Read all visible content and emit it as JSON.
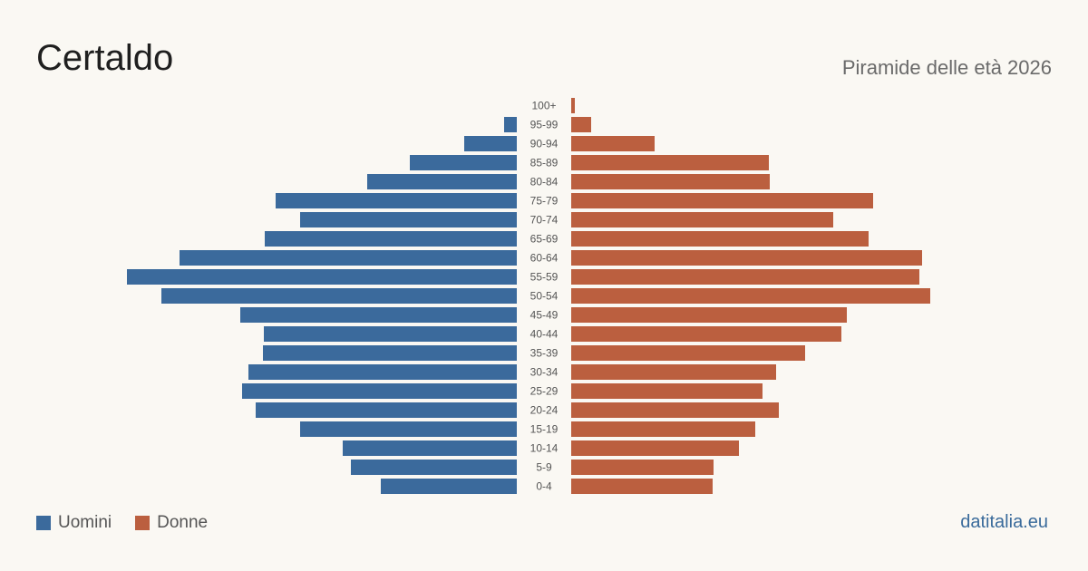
{
  "header": {
    "title": "Certaldo",
    "subtitle": "Piramide delle età 2026"
  },
  "legend": {
    "men": "Uomini",
    "women": "Donne"
  },
  "brand": "datitalia.eu",
  "colors": {
    "men": "#3b6a9c",
    "women": "#bb5f3f",
    "label": "#555555"
  },
  "chart_data": {
    "type": "bar",
    "orientation": "horizontal-pyramid",
    "categories": [
      "100+",
      "95-99",
      "90-94",
      "85-89",
      "80-84",
      "75-79",
      "70-74",
      "65-69",
      "60-64",
      "55-59",
      "50-54",
      "45-49",
      "40-44",
      "35-39",
      "30-34",
      "25-29",
      "20-24",
      "15-19",
      "10-14",
      "5-9",
      "0-4"
    ],
    "series": [
      {
        "name": "Uomini",
        "values": [
          0,
          14,
          58,
          118,
          165,
          266,
          239,
          278,
          372,
          430,
          392,
          305,
          279,
          280,
          296,
          303,
          288,
          239,
          192,
          183,
          150
        ]
      },
      {
        "name": "Donne",
        "values": [
          4,
          22,
          92,
          218,
          219,
          333,
          289,
          328,
          387,
          384,
          396,
          304,
          298,
          258,
          226,
          211,
          229,
          203,
          185,
          157,
          156
        ]
      }
    ],
    "xlim": [
      0,
      460
    ],
    "grid": false,
    "legend_position": "bottom-left"
  }
}
